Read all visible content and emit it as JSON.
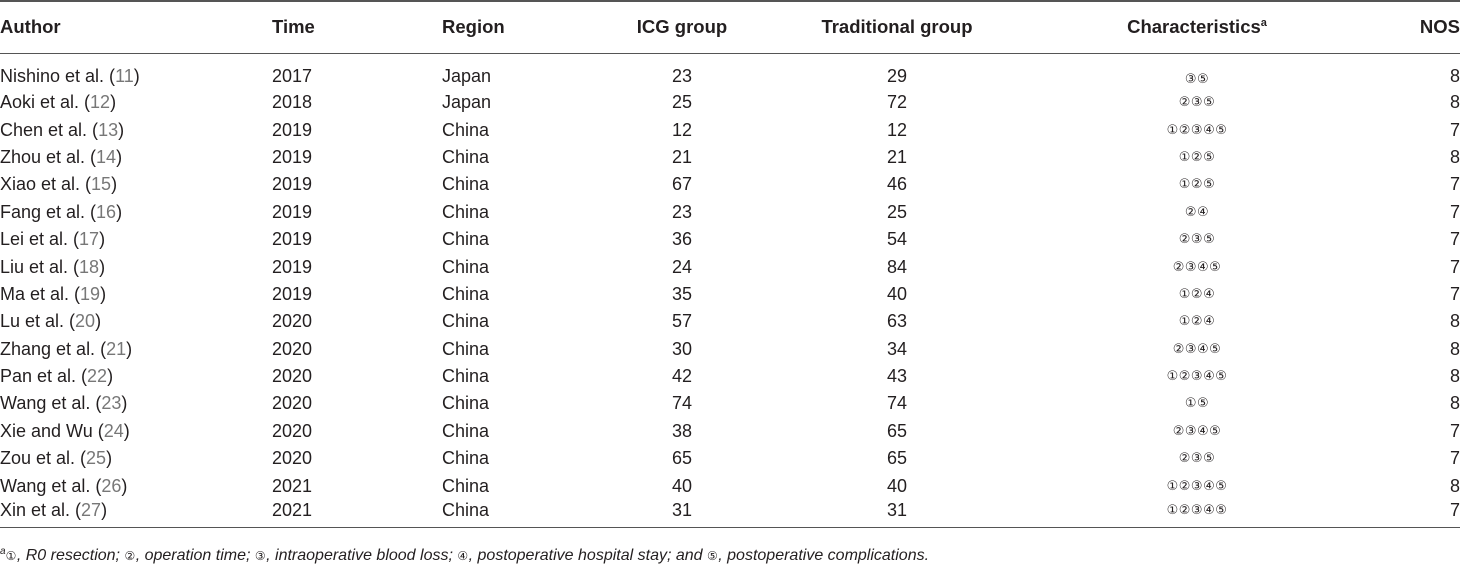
{
  "table": {
    "headers": {
      "author": "Author",
      "time": "Time",
      "region": "Region",
      "icg": "ICG group",
      "traditional": "Traditional group",
      "characteristics": "Characteristics",
      "characteristics_sup": "a",
      "nos": "NOS"
    },
    "rows": [
      {
        "author": "Nishino et al. (",
        "ref": "11",
        "close": ")",
        "time": "2017",
        "region": "Japan",
        "icg": "23",
        "traditional": "29",
        "characteristics": "③⑤",
        "nos": "8"
      },
      {
        "author": "Aoki et al. (",
        "ref": "12",
        "close": ")",
        "time": "2018",
        "region": "Japan",
        "icg": "25",
        "traditional": "72",
        "characteristics": "②③⑤",
        "nos": "8"
      },
      {
        "author": "Chen et al. (",
        "ref": "13",
        "close": ")",
        "time": "2019",
        "region": "China",
        "icg": "12",
        "traditional": "12",
        "characteristics": "①②③④⑤",
        "nos": "7"
      },
      {
        "author": "Zhou et al. (",
        "ref": "14",
        "close": ")",
        "time": "2019",
        "region": "China",
        "icg": "21",
        "traditional": "21",
        "characteristics": "①②⑤",
        "nos": "8"
      },
      {
        "author": "Xiao et al. (",
        "ref": "15",
        "close": ")",
        "time": "2019",
        "region": "China",
        "icg": "67",
        "traditional": "46",
        "characteristics": "①②⑤",
        "nos": "7"
      },
      {
        "author": "Fang et al. (",
        "ref": "16",
        "close": ")",
        "time": "2019",
        "region": "China",
        "icg": "23",
        "traditional": "25",
        "characteristics": "②④",
        "nos": "7"
      },
      {
        "author": "Lei et al. (",
        "ref": "17",
        "close": ")",
        "time": "2019",
        "region": "China",
        "icg": "36",
        "traditional": "54",
        "characteristics": "②③⑤",
        "nos": "7"
      },
      {
        "author": "Liu et al. (",
        "ref": "18",
        "close": ")",
        "time": "2019",
        "region": "China",
        "icg": "24",
        "traditional": "84",
        "characteristics": "②③④⑤",
        "nos": "7"
      },
      {
        "author": "Ma et al. (",
        "ref": "19",
        "close": ")",
        "time": "2019",
        "region": "China",
        "icg": "35",
        "traditional": "40",
        "characteristics": "①②④",
        "nos": "7"
      },
      {
        "author": "Lu et al. (",
        "ref": "20",
        "close": ")",
        "time": "2020",
        "region": "China",
        "icg": "57",
        "traditional": "63",
        "characteristics": "①②④",
        "nos": "8"
      },
      {
        "author": "Zhang et al. (",
        "ref": "21",
        "close": ")",
        "time": "2020",
        "region": "China",
        "icg": "30",
        "traditional": "34",
        "characteristics": "②③④⑤",
        "nos": "8"
      },
      {
        "author": "Pan et al. (",
        "ref": "22",
        "close": ")",
        "time": "2020",
        "region": "China",
        "icg": "42",
        "traditional": "43",
        "characteristics": "①②③④⑤",
        "nos": "8"
      },
      {
        "author": "Wang et al. (",
        "ref": "23",
        "close": ")",
        "time": "2020",
        "region": "China",
        "icg": "74",
        "traditional": "74",
        "characteristics": "①⑤",
        "nos": "8"
      },
      {
        "author": "Xie and Wu (",
        "ref": "24",
        "close": ")",
        "time": "2020",
        "region": "China",
        "icg": "38",
        "traditional": "65",
        "characteristics": "②③④⑤",
        "nos": "7"
      },
      {
        "author": "Zou et al. (",
        "ref": "25",
        "close": ")",
        "time": "2020",
        "region": "China",
        "icg": "65",
        "traditional": "65",
        "characteristics": "②③⑤",
        "nos": "7"
      },
      {
        "author": "Wang et al. (",
        "ref": "26",
        "close": ")",
        "time": "2021",
        "region": "China",
        "icg": "40",
        "traditional": "40",
        "characteristics": "①②③④⑤",
        "nos": "8"
      },
      {
        "author": "Xin et al. (",
        "ref": "27",
        "close": ")",
        "time": "2021",
        "region": "China",
        "icg": "31",
        "traditional": "31",
        "characteristics": "①②③④⑤",
        "nos": "7"
      }
    ]
  },
  "footnote": {
    "sup": "a",
    "parts": [
      {
        "circ": "①",
        "text": ", R0 resection; "
      },
      {
        "circ": "②",
        "text": ", operation time; "
      },
      {
        "circ": "③",
        "text": ", intraoperative blood loss; "
      },
      {
        "circ": "④",
        "text": ", postoperative hospital stay; and "
      },
      {
        "circ": "⑤",
        "text": ", postoperative complications."
      }
    ]
  }
}
